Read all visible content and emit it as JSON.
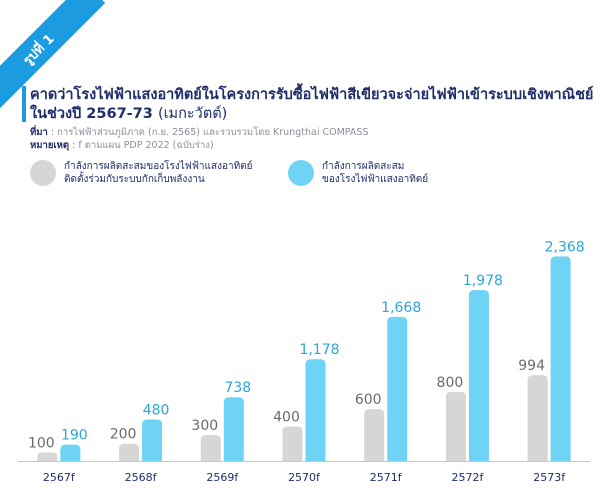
{
  "badge": "รูปที่ 1",
  "title": "คาดว่าโรงไฟฟ้าแสงอาทิตย์ในโครงการรับซื้อไฟฟ้าสีเขียวจะจ่ายไฟฟ้าเข้าระบบเชิงพาณิชย์",
  "title_line2": "ในช่วงปี 2567-73",
  "title_unit": "(เมกะวัตต์)",
  "source_label": "ที่มา",
  "source_text": ": การไฟฟ้าส่วนภูมิภาค (ก.ย. 2565) และรวบรวมโดย Krungthai COMPASS",
  "note_label": "หมายเหตุ",
  "note_text": ": f ตามแผน PDP 2022 (ฉบับร่าง)",
  "chart_data": {
    "type": "bar",
    "categories": [
      "2567f",
      "2568f",
      "2569f",
      "2570f",
      "2571f",
      "2572f",
      "2573f"
    ],
    "series": [
      {
        "name": "กำลังการผลิตสะสมของโรงไฟฟ้าแสงอาทิตย์\nติดตั้งร่วมกับระบบกักเก็บพลังงาน",
        "values": [
          100,
          200,
          300,
          400,
          600,
          800,
          994
        ],
        "color": "#d6d6d6",
        "label_color": "#6b6b6b"
      },
      {
        "name": "กำลังการผลิตสะสม\nของโรงไฟฟ้าแสงอาทิตย์",
        "values": [
          190,
          480,
          738,
          1178,
          1668,
          1978,
          2368
        ],
        "color": "#6fd3f6",
        "label_color": "#2ba6d8"
      }
    ],
    "ylim": [
      0,
      2500
    ],
    "grid": false,
    "legend_position": "top-left"
  }
}
